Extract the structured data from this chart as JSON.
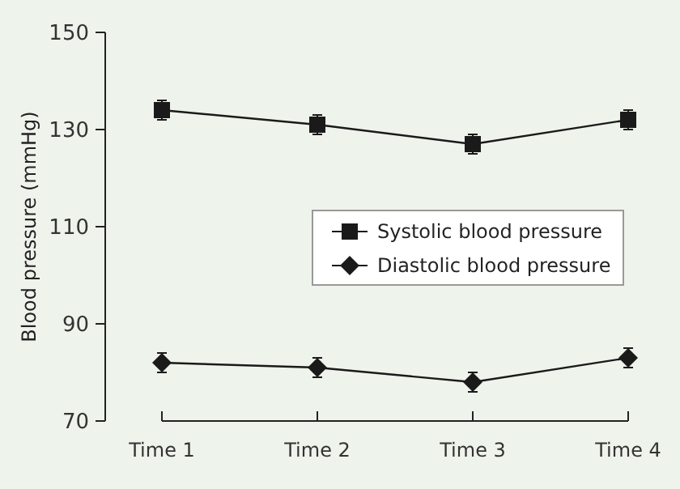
{
  "chart_data": {
    "type": "line",
    "ylabel": "Blood pressure (mmHg)",
    "categories": [
      "Time 1",
      "Time 2",
      "Time 3",
      "Time 4"
    ],
    "series": [
      {
        "name": "Systolic blood pressure",
        "color": "#1a1a1a",
        "values": [
          134,
          131,
          127,
          132
        ],
        "errors": [
          2,
          2,
          2,
          2
        ],
        "marker": "square"
      },
      {
        "name": "Diastolic blood pressure",
        "color": "#1a1a1a",
        "values": [
          82,
          81,
          78,
          83
        ],
        "errors": [
          2,
          2,
          2,
          2
        ],
        "marker": "diamond"
      }
    ],
    "ylim": [
      70,
      150
    ],
    "yticks": [
      70,
      90,
      110,
      130,
      150
    ],
    "grid": false,
    "legend": "right",
    "line_style": "solid"
  }
}
